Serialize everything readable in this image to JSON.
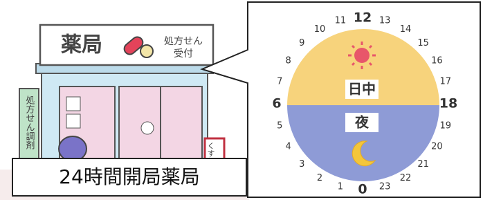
{
  "shop": {
    "sign": "薬局",
    "sign_note": [
      "処方せん",
      "受付"
    ],
    "side_sign": "処方せん調剤",
    "stand_sign": "くすり"
  },
  "caption": "24時間開局薬局",
  "clock": {
    "hours": [
      0,
      1,
      2,
      3,
      4,
      5,
      6,
      7,
      8,
      9,
      10,
      11,
      12,
      13,
      14,
      15,
      16,
      17,
      18,
      19,
      20,
      21,
      22,
      23
    ],
    "day_label": "日中",
    "night_label": "夜"
  }
}
